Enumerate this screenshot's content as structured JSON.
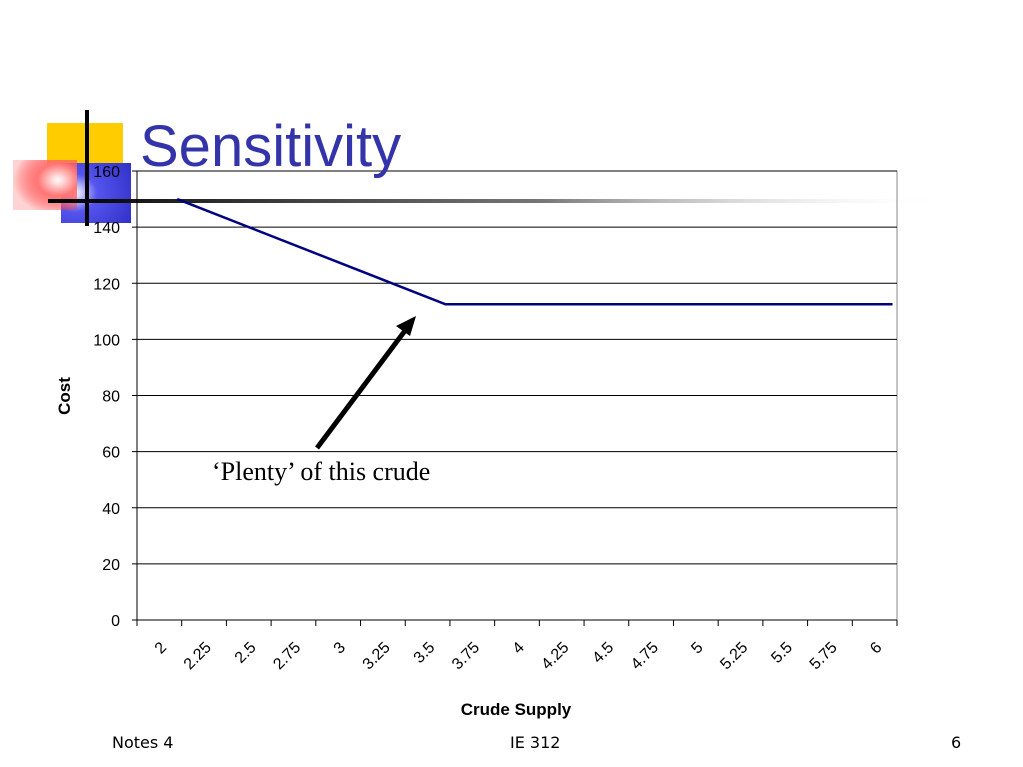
{
  "slide": {
    "title": "Sensitivity",
    "annotation": "‘Plenty’ of this crude"
  },
  "footer": {
    "left": "Notes 4",
    "center": "IE 312",
    "right": "6"
  },
  "colors": {
    "title": "#3333aa",
    "series_line": "#000080",
    "gridline": "#000000",
    "deco_yellow": "#ffcc00",
    "deco_blue": "#3333cc",
    "deco_red": "#ff3333"
  },
  "chart_data": {
    "type": "line",
    "title": "",
    "xlabel": "Crude Supply",
    "ylabel": "Cost",
    "ylim": [
      0,
      160
    ],
    "grid": true,
    "legend": "none",
    "y_ticks": [
      "0",
      "20",
      "40",
      "60",
      "80",
      "100",
      "120",
      "140",
      "160"
    ],
    "categories": [
      "2",
      "2.25",
      "2.5",
      "2.75",
      "3",
      "3.25",
      "3.5",
      "3.75",
      "4",
      "4.25",
      "4.5",
      "4.75",
      "5",
      "5.25",
      "5.5",
      "5.75",
      "6"
    ],
    "series": [
      {
        "name": "",
        "x": [
          2.1,
          3.6,
          6.1
        ],
        "y": [
          150,
          112.5,
          112.5
        ]
      }
    ]
  }
}
